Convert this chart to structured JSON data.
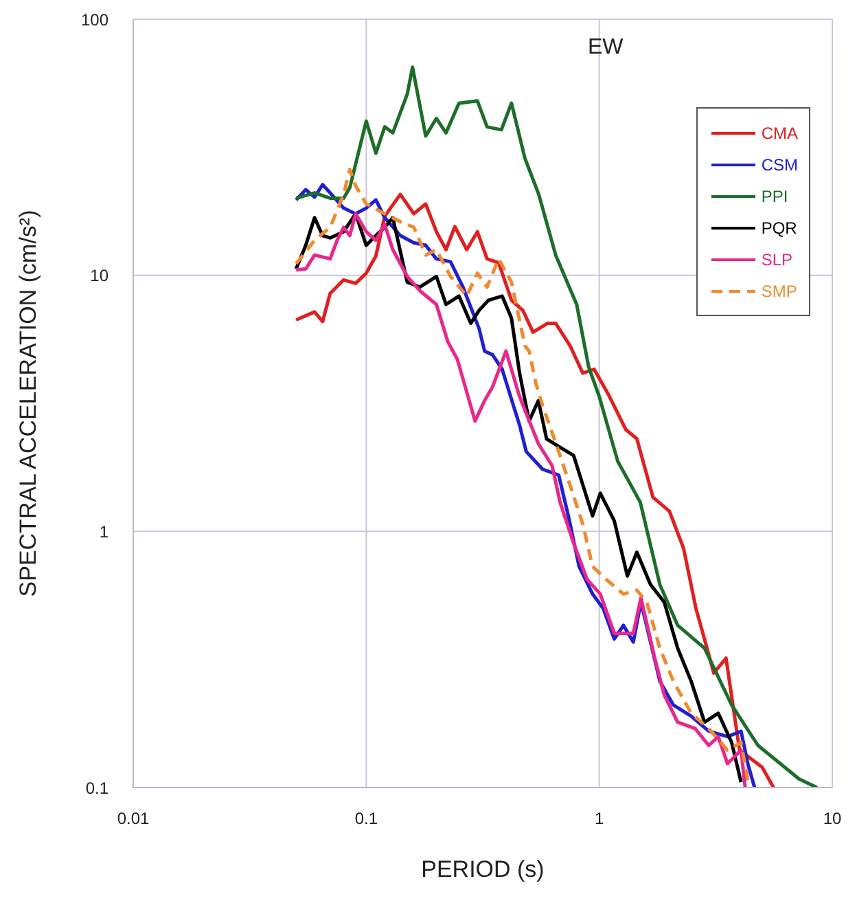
{
  "chart_data": {
    "type": "line",
    "xlabel": "PERIOD (s)",
    "ylabel": "SPECTRAL ACCELERATION (cm/s²)",
    "annotations": [
      "EW"
    ],
    "log": "xy",
    "grid": true,
    "legend": "top right",
    "marker": "none",
    "line_style": "solid",
    "xlim": [
      0.01,
      10
    ],
    "ylim": [
      0.1,
      100
    ],
    "xticks": [
      0.01,
      0.1,
      1,
      10
    ],
    "yticks": [
      0.1,
      1,
      10,
      100
    ],
    "series": [
      {
        "name": "CMA",
        "color": "#e02020",
        "x": [
          0.05,
          0.06,
          0.065,
          0.07,
          0.08,
          0.09,
          0.1,
          0.11,
          0.12,
          0.14,
          0.16,
          0.18,
          0.2,
          0.22,
          0.24,
          0.27,
          0.3,
          0.33,
          0.37,
          0.42,
          0.47,
          0.52,
          0.6,
          0.65,
          0.75,
          0.85,
          0.95,
          1.1,
          1.3,
          1.45,
          1.7,
          2,
          2.3,
          2.6,
          2.9,
          3.1,
          3.5,
          4,
          5,
          5.6
        ],
        "values": [
          6.7,
          7.2,
          6.6,
          8.5,
          9.6,
          9.3,
          10.2,
          11.9,
          17,
          20.7,
          17.4,
          19,
          14.8,
          12.6,
          15.5,
          12.6,
          14.8,
          11.6,
          11.2,
          8,
          7.3,
          6,
          6.5,
          6.5,
          5.3,
          4.15,
          4.3,
          3.4,
          2.5,
          2.3,
          1.36,
          1.2,
          0.86,
          0.5,
          0.35,
          0.28,
          0.32,
          0.14,
          0.12,
          0.1
        ]
      },
      {
        "name": "CSM",
        "color": "#2020d0",
        "x": [
          0.05,
          0.055,
          0.06,
          0.065,
          0.07,
          0.08,
          0.09,
          0.1,
          0.11,
          0.12,
          0.14,
          0.16,
          0.18,
          0.2,
          0.23,
          0.26,
          0.305,
          0.322,
          0.348,
          0.383,
          0.455,
          0.486,
          0.571,
          0.67,
          0.745,
          0.819,
          0.936,
          1.04,
          1.16,
          1.27,
          1.4,
          1.51,
          1.82,
          2.08,
          2.48,
          2.95,
          3.55,
          4.06,
          4.34,
          4.64
        ],
        "values": [
          19.7,
          21.6,
          20.2,
          22.6,
          21,
          18.3,
          17.4,
          18.3,
          19.7,
          16.8,
          14.3,
          13.4,
          13.1,
          11.6,
          11.3,
          9,
          6.2,
          5.06,
          4.9,
          4.3,
          2.6,
          2.05,
          1.75,
          1.66,
          1.1,
          0.73,
          0.57,
          0.5,
          0.38,
          0.43,
          0.37,
          0.53,
          0.26,
          0.21,
          0.19,
          0.166,
          0.158,
          0.166,
          0.124,
          0.1
        ]
      },
      {
        "name": "PPI",
        "color": "#1e6e2a",
        "x": [
          0.05,
          0.06,
          0.07,
          0.08,
          0.085,
          0.1,
          0.11,
          0.12,
          0.13,
          0.15,
          0.158,
          0.18,
          0.2,
          0.22,
          0.25,
          0.3,
          0.33,
          0.38,
          0.42,
          0.48,
          0.55,
          0.65,
          0.8,
          0.9,
          1,
          1.2,
          1.5,
          1.82,
          2.17,
          2.83,
          3.7,
          4.8,
          7.2,
          8.6
        ],
        "values": [
          20,
          21,
          20,
          20,
          22,
          40,
          30,
          38,
          36,
          51,
          65,
          35,
          41,
          36,
          47,
          48,
          38,
          37,
          47,
          28.6,
          20.7,
          12,
          7.7,
          4.4,
          3.36,
          1.88,
          1.3,
          0.62,
          0.43,
          0.35,
          0.21,
          0.146,
          0.108,
          0.1
        ]
      },
      {
        "name": "PQR",
        "color": "#000000",
        "x": [
          0.05,
          0.055,
          0.06,
          0.065,
          0.07,
          0.08,
          0.09,
          0.1,
          0.11,
          0.12,
          0.13,
          0.15,
          0.17,
          0.2,
          0.22,
          0.25,
          0.281,
          0.305,
          0.335,
          0.383,
          0.42,
          0.455,
          0.5,
          0.548,
          0.594,
          0.679,
          0.776,
          0.936,
          1.01,
          1.16,
          1.32,
          1.45,
          1.66,
          1.9,
          2.17,
          2.48,
          2.83,
          3.24,
          3.7,
          4.06
        ],
        "values": [
          10.6,
          13.1,
          16.8,
          14.3,
          14,
          14.8,
          17.4,
          13.1,
          14.3,
          15.4,
          16.8,
          9.4,
          9,
          9.9,
          7.7,
          8.3,
          6.5,
          7.3,
          8,
          8.3,
          6.8,
          4.15,
          2.7,
          3.24,
          2.3,
          2.13,
          1.98,
          1.15,
          1.41,
          1.1,
          0.67,
          0.83,
          0.62,
          0.53,
          0.35,
          0.26,
          0.18,
          0.195,
          0.15,
          0.105
        ]
      },
      {
        "name": "SLP",
        "color": "#e8288c",
        "x": [
          0.05,
          0.055,
          0.06,
          0.07,
          0.075,
          0.08,
          0.085,
          0.09,
          0.1,
          0.11,
          0.12,
          0.13,
          0.15,
          0.17,
          0.2,
          0.224,
          0.246,
          0.293,
          0.322,
          0.348,
          0.398,
          0.455,
          0.548,
          0.627,
          0.679,
          0.776,
          0.887,
          1.01,
          1.16,
          1.4,
          1.51,
          1.73,
          1.9,
          2.17,
          2.58,
          2.95,
          3.24,
          3.55,
          4.06,
          4.23
        ],
        "values": [
          10.5,
          10.6,
          12,
          11.6,
          13.7,
          15.4,
          14.3,
          17.4,
          14.8,
          13.7,
          15.8,
          12.6,
          9.9,
          8.7,
          7.7,
          5.5,
          4.7,
          2.7,
          3.24,
          3.66,
          5.06,
          3.36,
          2.2,
          1.81,
          1.3,
          0.9,
          0.65,
          0.57,
          0.4,
          0.4,
          0.55,
          0.32,
          0.23,
          0.18,
          0.17,
          0.146,
          0.158,
          0.124,
          0.14,
          0.1
        ]
      },
      {
        "name": "SMP",
        "color": "#f08a30",
        "line_style": "dashed",
        "x": [
          0.05,
          0.06,
          0.07,
          0.08,
          0.085,
          0.09,
          0.1,
          0.12,
          0.14,
          0.16,
          0.18,
          0.2,
          0.23,
          0.27,
          0.3,
          0.33,
          0.37,
          0.42,
          0.48,
          0.5,
          0.534,
          0.571,
          0.652,
          0.745,
          0.852,
          0.936,
          1.07,
          1.27,
          1.45,
          1.6,
          1.82,
          2.08,
          2.48,
          2.95,
          3.55,
          4.06,
          4.4
        ],
        "values": [
          11.1,
          13.7,
          15.4,
          20.7,
          25.9,
          22.4,
          19,
          17.4,
          16.2,
          15.4,
          12,
          12.6,
          9.9,
          8.3,
          10.2,
          9,
          11.6,
          9.4,
          5.3,
          5.06,
          3.8,
          3.1,
          2.2,
          1.54,
          1.06,
          0.73,
          0.65,
          0.57,
          0.59,
          0.53,
          0.35,
          0.26,
          0.195,
          0.17,
          0.14,
          0.15,
          0.1
        ]
      }
    ]
  }
}
